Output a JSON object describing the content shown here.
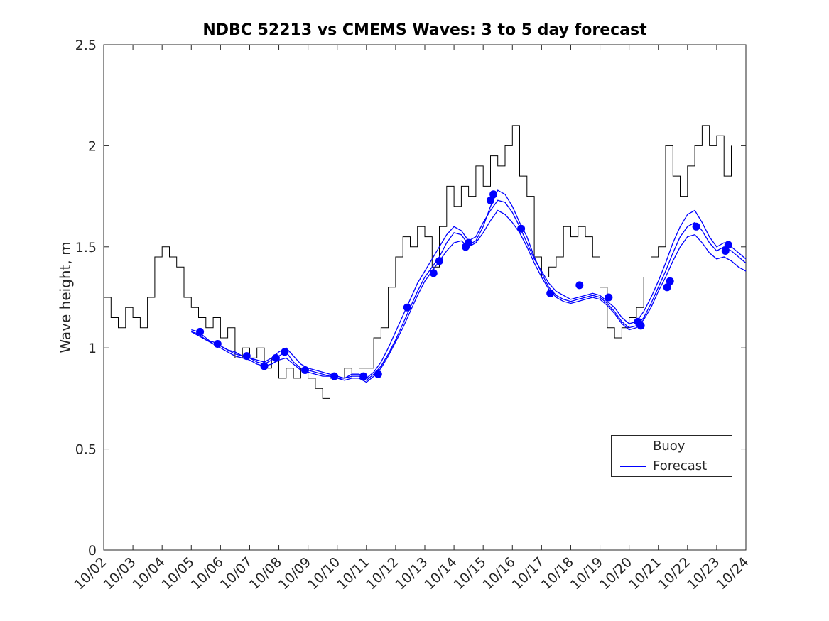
{
  "page": {
    "background": "#ffffff"
  },
  "chart_data": {
    "type": "line",
    "title": "NDBC 52213 vs CMEMS Waves: 3 to 5 day forecast",
    "xlabel": "",
    "ylabel": "Wave height, m",
    "xlim": [
      0,
      22
    ],
    "ylim": [
      0,
      2.5
    ],
    "grid": false,
    "axis_color": "#262626",
    "y_ticks": [
      0,
      0.5,
      1,
      1.5,
      2,
      2.5
    ],
    "y_tick_labels": [
      "0",
      "0.5",
      "1",
      "1.5",
      "2",
      "2.5"
    ],
    "x_ticks": [
      0,
      1,
      2,
      3,
      4,
      5,
      6,
      7,
      8,
      9,
      10,
      11,
      12,
      13,
      14,
      15,
      16,
      17,
      18,
      19,
      20,
      21,
      22
    ],
    "x_tick_labels": [
      "10/02",
      "10/03",
      "10/04",
      "10/05",
      "10/06",
      "10/07",
      "10/08",
      "10/09",
      "10/10",
      "10/11",
      "10/12",
      "10/13",
      "10/14",
      "10/15",
      "10/16",
      "10/17",
      "10/18",
      "10/19",
      "10/20",
      "10/21",
      "10/22",
      "10/23",
      "10/24"
    ],
    "x_tick_angle": 45,
    "legend": {
      "position": "inside-lower-right",
      "entries": [
        {
          "label": "Buoy",
          "color": "#000000"
        },
        {
          "label": "Forecast",
          "color": "#0000ff"
        }
      ]
    },
    "series": [
      {
        "name": "Buoy",
        "color": "#000000",
        "render": "step",
        "width": 1,
        "x_start": 0,
        "x_step": 0.25,
        "values": [
          1.25,
          1.15,
          1.1,
          1.2,
          1.15,
          1.1,
          1.25,
          1.45,
          1.5,
          1.45,
          1.4,
          1.25,
          1.2,
          1.15,
          1.1,
          1.15,
          1.05,
          1.1,
          0.95,
          1.0,
          0.95,
          1.0,
          0.9,
          0.95,
          0.85,
          0.9,
          0.85,
          0.9,
          0.85,
          0.8,
          0.75,
          0.85,
          0.85,
          0.9,
          0.85,
          0.9,
          0.9,
          1.05,
          1.1,
          1.3,
          1.45,
          1.55,
          1.5,
          1.6,
          1.55,
          1.4,
          1.6,
          1.8,
          1.7,
          1.8,
          1.75,
          1.9,
          1.8,
          1.95,
          1.9,
          2.0,
          2.1,
          1.85,
          1.75,
          1.45,
          1.35,
          1.4,
          1.45,
          1.6,
          1.55,
          1.6,
          1.55,
          1.45,
          1.3,
          1.1,
          1.05,
          1.1,
          1.15,
          1.2,
          1.35,
          1.45,
          1.5,
          2.0,
          1.85,
          1.75,
          1.9,
          2.0,
          2.1,
          2.0,
          2.05,
          1.85,
          2.0
        ]
      },
      {
        "name": "Forecast run 1",
        "color": "#0000ff",
        "render": "line",
        "width": 1.3,
        "x_start": 3,
        "x_step": 0.25,
        "values": [
          1.09,
          1.08,
          1.05,
          1.02,
          1.01,
          0.99,
          0.97,
          0.96,
          0.95,
          0.93,
          0.92,
          0.94,
          0.96,
          0.98,
          0.93,
          0.9,
          0.89,
          0.88,
          0.87,
          0.86,
          0.85,
          0.85,
          0.86,
          0.86,
          0.84,
          0.87,
          0.91,
          0.97,
          1.04,
          1.12,
          1.2,
          1.28,
          1.35,
          1.4,
          1.45,
          1.52,
          1.57,
          1.56,
          1.51,
          1.53,
          1.6,
          1.7,
          1.78,
          1.76,
          1.7,
          1.62,
          1.55,
          1.45,
          1.37,
          1.3,
          1.26,
          1.24,
          1.23,
          1.24,
          1.25,
          1.26,
          1.25,
          1.22,
          1.18,
          1.13,
          1.1,
          1.11,
          1.15,
          1.22,
          1.3,
          1.38,
          1.47,
          1.55,
          1.6,
          1.62,
          1.58,
          1.52,
          1.48,
          1.5,
          1.48,
          1.45,
          1.42
        ]
      },
      {
        "name": "Forecast run 2",
        "color": "#0000ff",
        "render": "line",
        "width": 1.3,
        "x_start": 3,
        "x_step": 0.25,
        "values": [
          1.08,
          1.06,
          1.04,
          1.02,
          1.0,
          0.98,
          0.96,
          0.95,
          0.94,
          0.92,
          0.91,
          0.92,
          0.94,
          0.95,
          0.92,
          0.89,
          0.88,
          0.87,
          0.86,
          0.86,
          0.85,
          0.84,
          0.85,
          0.85,
          0.83,
          0.86,
          0.9,
          0.96,
          1.03,
          1.1,
          1.18,
          1.26,
          1.33,
          1.38,
          1.43,
          1.48,
          1.52,
          1.53,
          1.5,
          1.52,
          1.57,
          1.63,
          1.68,
          1.66,
          1.62,
          1.57,
          1.5,
          1.42,
          1.35,
          1.29,
          1.25,
          1.23,
          1.22,
          1.23,
          1.24,
          1.25,
          1.24,
          1.21,
          1.17,
          1.12,
          1.09,
          1.1,
          1.14,
          1.2,
          1.28,
          1.35,
          1.43,
          1.5,
          1.55,
          1.56,
          1.52,
          1.47,
          1.44,
          1.45,
          1.43,
          1.4,
          1.38
        ]
      },
      {
        "name": "Forecast run 3",
        "color": "#0000ff",
        "render": "line",
        "width": 1.3,
        "x_start": 3,
        "x_step": 0.25,
        "values": [
          1.08,
          1.07,
          1.04,
          1.03,
          1.01,
          0.99,
          0.98,
          0.96,
          0.95,
          0.94,
          0.93,
          0.95,
          0.98,
          1.0,
          0.96,
          0.92,
          0.9,
          0.89,
          0.88,
          0.87,
          0.86,
          0.85,
          0.87,
          0.87,
          0.85,
          0.88,
          0.93,
          1.0,
          1.08,
          1.16,
          1.24,
          1.32,
          1.38,
          1.44,
          1.5,
          1.56,
          1.6,
          1.58,
          1.53,
          1.55,
          1.62,
          1.68,
          1.73,
          1.72,
          1.67,
          1.6,
          1.52,
          1.44,
          1.38,
          1.32,
          1.28,
          1.26,
          1.24,
          1.25,
          1.26,
          1.27,
          1.26,
          1.23,
          1.2,
          1.15,
          1.12,
          1.13,
          1.18,
          1.25,
          1.33,
          1.42,
          1.52,
          1.6,
          1.66,
          1.68,
          1.62,
          1.55,
          1.5,
          1.52,
          1.5,
          1.47,
          1.44
        ]
      }
    ],
    "markers": {
      "name": "forecast-start-points",
      "color": "#0000ff",
      "radius": 5.5,
      "points": [
        [
          3.3,
          1.08
        ],
        [
          3.9,
          1.02
        ],
        [
          4.9,
          0.96
        ],
        [
          5.5,
          0.91
        ],
        [
          5.9,
          0.95
        ],
        [
          6.2,
          0.98
        ],
        [
          6.9,
          0.89
        ],
        [
          7.9,
          0.86
        ],
        [
          8.9,
          0.86
        ],
        [
          9.4,
          0.87
        ],
        [
          10.4,
          1.2
        ],
        [
          11.3,
          1.37
        ],
        [
          11.5,
          1.43
        ],
        [
          12.4,
          1.5
        ],
        [
          12.5,
          1.52
        ],
        [
          13.25,
          1.73
        ],
        [
          13.35,
          1.76
        ],
        [
          14.3,
          1.59
        ],
        [
          15.3,
          1.27
        ],
        [
          16.3,
          1.31
        ],
        [
          17.3,
          1.25
        ],
        [
          18.3,
          1.13
        ],
        [
          18.4,
          1.11
        ],
        [
          19.3,
          1.3
        ],
        [
          19.4,
          1.33
        ],
        [
          20.3,
          1.6
        ],
        [
          21.3,
          1.48
        ],
        [
          21.4,
          1.51
        ]
      ]
    }
  }
}
